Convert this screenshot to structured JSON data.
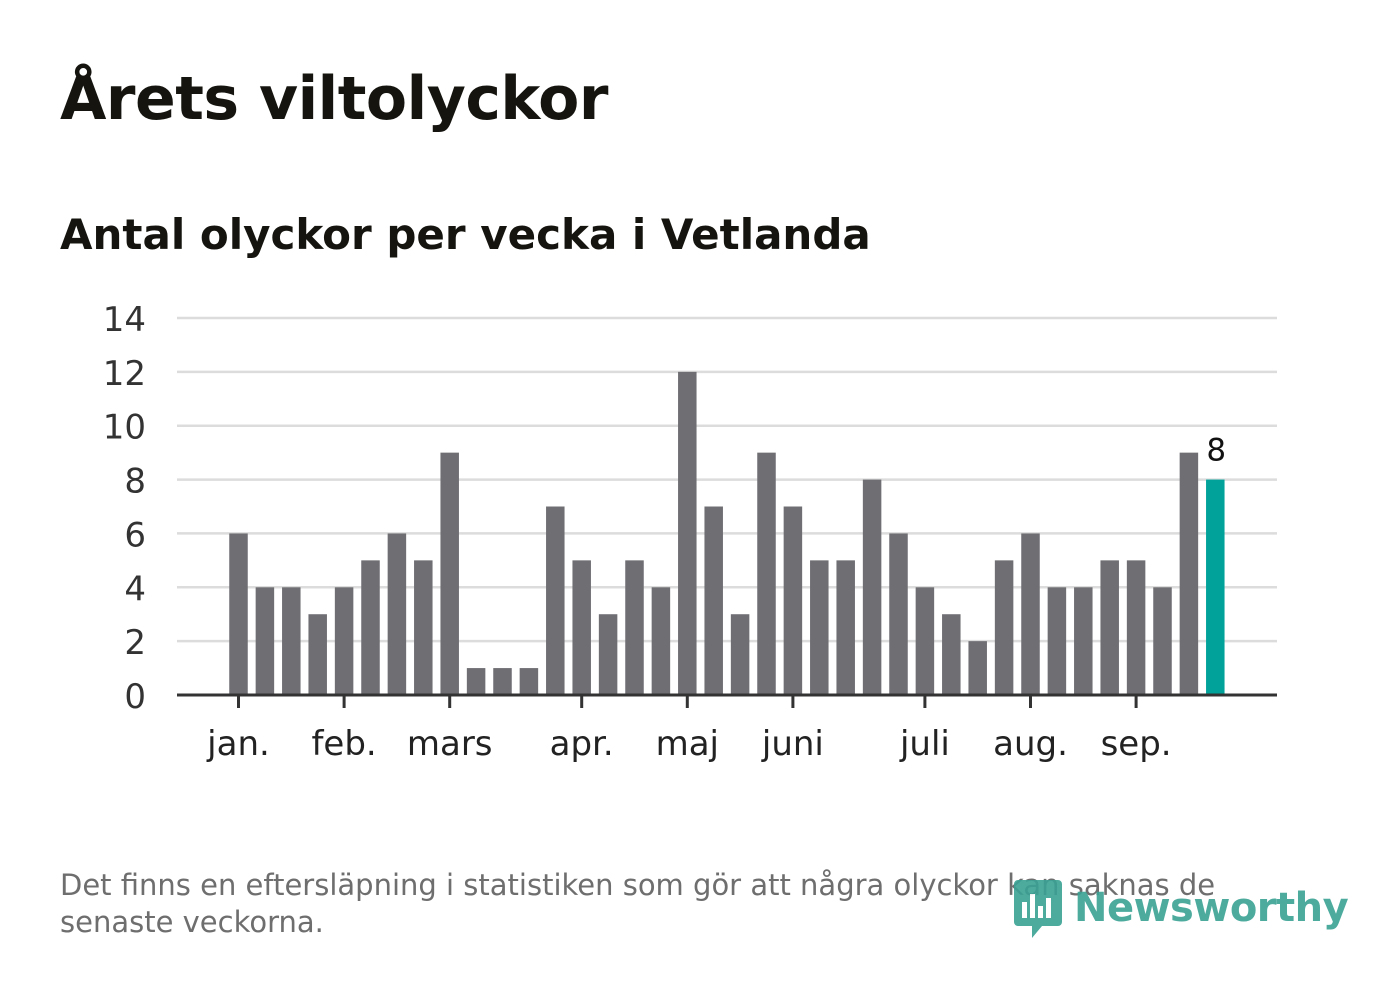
{
  "title": "Årets viltolyckor",
  "subtitle": "Antal olyckor per vecka i Vetlanda",
  "footnote": "Det finns en eftersläpning i statistiken som gör att några olyckor kan saknas de senaste veckorna.",
  "logo": {
    "text": "Newsworthy",
    "icon": "newsworthy-logo-icon"
  },
  "colors": {
    "bar": "#6f6e73",
    "highlight": "#00a29a",
    "grid": "#dcdcdc",
    "axis": "#333333"
  },
  "chart_data": {
    "type": "bar",
    "title": "Antal olyckor per vecka i Vetlanda",
    "xlabel": "",
    "ylabel": "",
    "ylim": [
      0,
      14
    ],
    "yticks": [
      0,
      2,
      4,
      6,
      8,
      10,
      12,
      14
    ],
    "grid": true,
    "weeks": [
      1,
      2,
      3,
      4,
      5,
      6,
      7,
      8,
      9,
      10,
      11,
      12,
      13,
      14,
      15,
      16,
      17,
      18,
      19,
      20,
      21,
      22,
      23,
      24,
      25,
      26,
      27,
      28,
      29,
      30,
      31,
      32,
      33,
      34,
      35,
      36,
      37,
      38
    ],
    "values": [
      6,
      4,
      4,
      3,
      4,
      5,
      6,
      5,
      9,
      1,
      1,
      1,
      7,
      5,
      3,
      5,
      4,
      12,
      7,
      3,
      9,
      7,
      5,
      5,
      8,
      6,
      4,
      3,
      2,
      5,
      6,
      4,
      4,
      5,
      5,
      4,
      9,
      8
    ],
    "highlight_index": 37,
    "highlight_label": "8",
    "month_ticks": [
      {
        "label": "jan.",
        "week": 1
      },
      {
        "label": "feb.",
        "week": 5
      },
      {
        "label": "mars",
        "week": 9
      },
      {
        "label": "apr.",
        "week": 14
      },
      {
        "label": "maj",
        "week": 18
      },
      {
        "label": "juni",
        "week": 22
      },
      {
        "label": "juli",
        "week": 27
      },
      {
        "label": "aug.",
        "week": 31
      },
      {
        "label": "sep.",
        "week": 35
      }
    ]
  }
}
